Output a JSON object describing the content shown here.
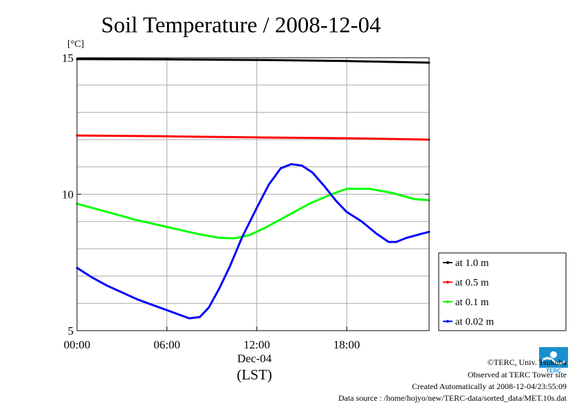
{
  "chart_data": {
    "type": "line",
    "title": "Soil Temperature / 2008-12-04",
    "ylabel": "[°C]",
    "xlabel": "(LST)",
    "date_label": "Dec-04",
    "ylim": [
      5,
      15
    ],
    "yticks": [
      {
        "value": 5,
        "label": "5"
      },
      {
        "value": 10,
        "label": "10"
      },
      {
        "value": 15,
        "label": "15"
      }
    ],
    "minor_y_step": 1,
    "xlim": [
      0,
      23.5
    ],
    "xticks": [
      {
        "value": 0,
        "label": "00:00"
      },
      {
        "value": 6,
        "label": "06:00"
      },
      {
        "value": 12,
        "label": "12:00"
      },
      {
        "value": 18,
        "label": "18:00"
      }
    ],
    "grid": true,
    "legend_position": "right",
    "series": [
      {
        "name": "at 1.0 m",
        "color": "#000000",
        "points": [
          [
            0,
            14.95
          ],
          [
            6,
            14.94
          ],
          [
            12,
            14.92
          ],
          [
            18,
            14.88
          ],
          [
            23.5,
            14.82
          ]
        ]
      },
      {
        "name": "at 0.5 m",
        "color": "#ff0000",
        "points": [
          [
            0,
            12.15
          ],
          [
            6,
            12.12
          ],
          [
            12,
            12.08
          ],
          [
            18,
            12.05
          ],
          [
            23.5,
            12.0
          ]
        ]
      },
      {
        "name": "at 0.1 m",
        "color": "#00ff00",
        "points": [
          [
            0,
            9.65
          ],
          [
            2,
            9.35
          ],
          [
            4,
            9.05
          ],
          [
            6,
            8.8
          ],
          [
            8,
            8.55
          ],
          [
            9.5,
            8.4
          ],
          [
            10.5,
            8.38
          ],
          [
            11.5,
            8.5
          ],
          [
            12.5,
            8.75
          ],
          [
            14,
            9.2
          ],
          [
            15.5,
            9.65
          ],
          [
            17,
            10.0
          ],
          [
            18,
            10.2
          ],
          [
            19.5,
            10.2
          ],
          [
            21,
            10.05
          ],
          [
            22.5,
            9.82
          ],
          [
            23.5,
            9.78
          ]
        ]
      },
      {
        "name": "at 0.02 m",
        "color": "#0000ff",
        "points": [
          [
            0,
            7.3
          ],
          [
            1,
            6.95
          ],
          [
            2,
            6.65
          ],
          [
            3,
            6.4
          ],
          [
            4,
            6.15
          ],
          [
            5,
            5.95
          ],
          [
            6,
            5.75
          ],
          [
            7,
            5.55
          ],
          [
            7.5,
            5.45
          ],
          [
            8.2,
            5.5
          ],
          [
            8.8,
            5.85
          ],
          [
            9.5,
            6.55
          ],
          [
            10.2,
            7.35
          ],
          [
            11,
            8.4
          ],
          [
            12,
            9.5
          ],
          [
            12.8,
            10.35
          ],
          [
            13.6,
            10.95
          ],
          [
            14.3,
            11.1
          ],
          [
            15,
            11.05
          ],
          [
            15.7,
            10.8
          ],
          [
            16.5,
            10.3
          ],
          [
            17.3,
            9.75
          ],
          [
            18,
            9.35
          ],
          [
            19,
            9.0
          ],
          [
            20,
            8.55
          ],
          [
            20.8,
            8.25
          ],
          [
            21.3,
            8.25
          ],
          [
            22,
            8.4
          ],
          [
            23,
            8.55
          ],
          [
            23.5,
            8.62
          ]
        ]
      }
    ]
  },
  "credits": {
    "copyright": "©TERC, Univ. Tsukuba",
    "observed": "Observed at TERC Tower site",
    "created": "Created Automatically at 2008-12-04/23:55:09",
    "source": "Data source : /home/hojyo/new/TERC-data/sorted_data/MET.10s.dat"
  },
  "logo": {
    "text": "TERC",
    "color": "#1a8fd0"
  }
}
